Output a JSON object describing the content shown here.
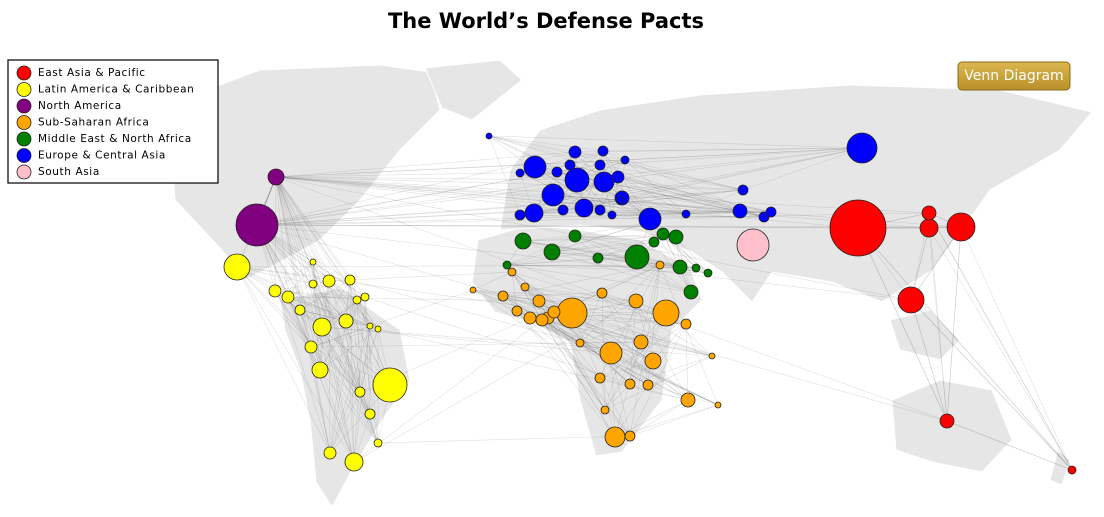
{
  "title": "The World’s Defense Pacts",
  "button": "Venn Diagram",
  "legend": [
    {
      "name": "East Asia & Pacific",
      "color": "#ff0000"
    },
    {
      "name": "Latin America & Caribbean",
      "color": "#ffff00"
    },
    {
      "name": "North America",
      "color": "#800080"
    },
    {
      "name": "Sub-Saharan Africa",
      "color": "#ffa500"
    },
    {
      "name": "Middle East & North Africa",
      "color": "#008000"
    },
    {
      "name": "Europe & Central Asia",
      "color": "#0000ff"
    },
    {
      "name": "South Asia",
      "color": "#ffc0cb"
    }
  ]
}
